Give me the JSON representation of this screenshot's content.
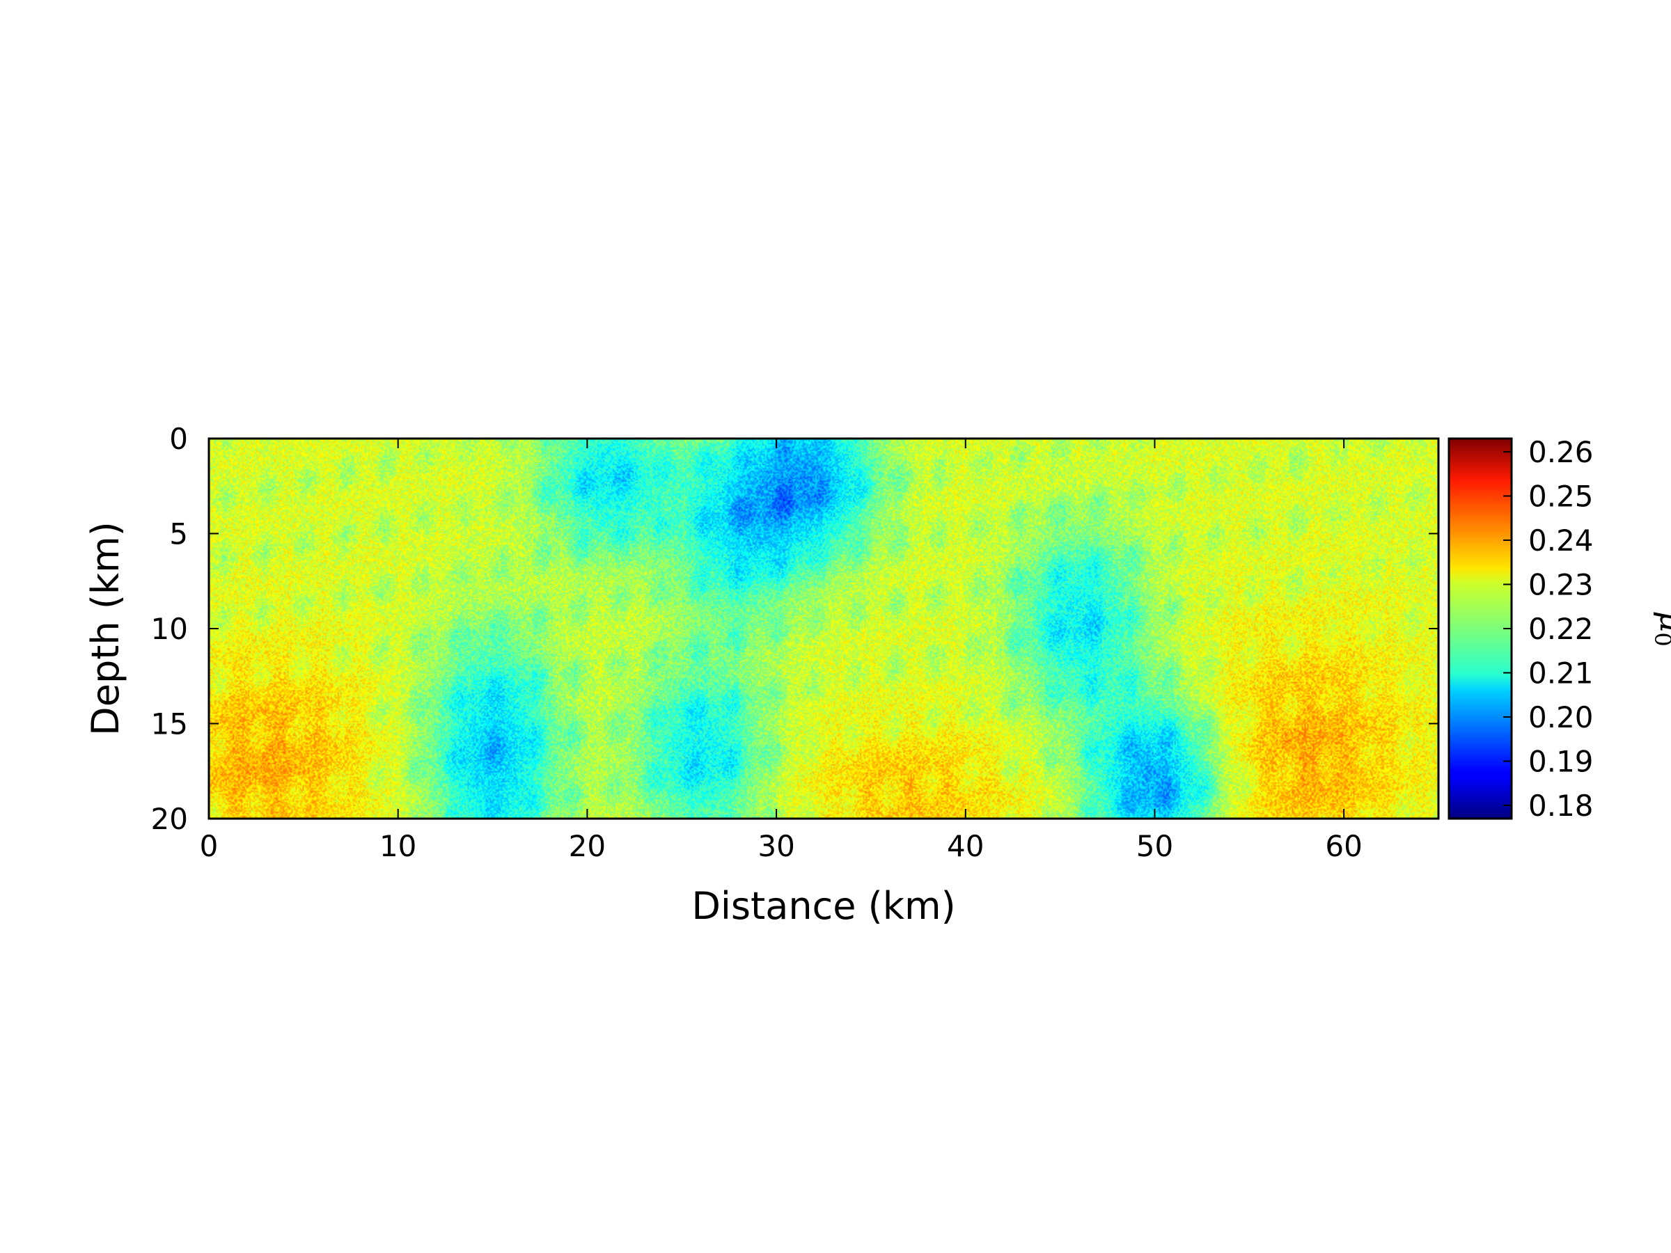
{
  "chart_data": {
    "type": "heatmap",
    "title": "",
    "xlabel": "Distance (km)",
    "ylabel": "Depth (km)",
    "xlim": [
      0,
      65
    ],
    "ylim": [
      20,
      0
    ],
    "x_ticks": [
      0,
      10,
      20,
      30,
      40,
      50,
      60
    ],
    "y_ticks": [
      0,
      5,
      10,
      15,
      20
    ],
    "colorbar": {
      "label": "μ",
      "label_subscript": "0",
      "colormap": "jet",
      "range": [
        0.177,
        0.263
      ],
      "ticks": [
        "0.18",
        "0.19",
        "0.20",
        "0.21",
        "0.22",
        "0.23",
        "0.24",
        "0.25",
        "0.26"
      ]
    },
    "field_description_values": {
      "background_mean": 0.228,
      "min_observed": 0.185,
      "max_observed": 0.245,
      "low_value_zones": [
        {
          "x_center": 15,
          "depth_range": [
            13,
            20
          ],
          "value": 0.2
        },
        {
          "x_center": 21,
          "depth_range": [
            0,
            4
          ],
          "value": 0.205
        },
        {
          "x_center": 28,
          "depth_range": [
            2,
            7
          ],
          "value": 0.205
        },
        {
          "x_center": 32,
          "depth_range": [
            0,
            4
          ],
          "value": 0.2
        },
        {
          "x_center": 46,
          "depth_range": [
            7,
            12
          ],
          "value": 0.205
        },
        {
          "x_center": 50,
          "depth_range": [
            16,
            20
          ],
          "value": 0.195
        },
        {
          "x_center": 26,
          "depth_range": [
            14,
            19
          ],
          "value": 0.205
        }
      ],
      "high_value_zones": [
        {
          "x_center": 3,
          "depth_range": [
            14,
            20
          ],
          "value": 0.238
        },
        {
          "x_center": 58,
          "depth_range": [
            13,
            20
          ],
          "value": 0.238
        },
        {
          "x_center": 37,
          "depth_range": [
            17,
            20
          ],
          "value": 0.236
        }
      ]
    }
  }
}
